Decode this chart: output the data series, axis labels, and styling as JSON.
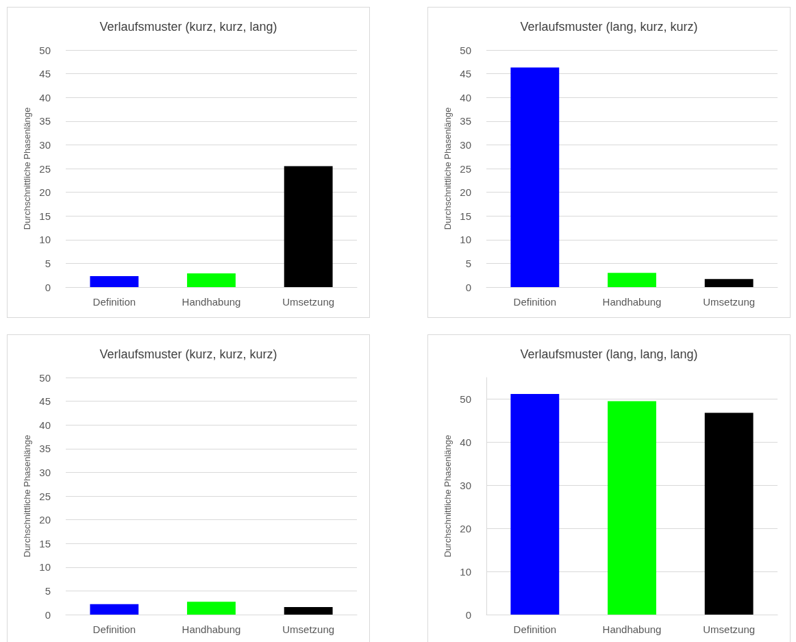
{
  "chart_data": [
    {
      "type": "bar",
      "title": "Verlaufsmuster (kurz, kurz, lang)",
      "ylabel": "Durchschnittliche Phasenlänge",
      "categories": [
        "Definition",
        "Handhabung",
        "Umsetzung"
      ],
      "values": [
        2.3,
        2.9,
        25.5
      ],
      "colors": [
        "#0000ff",
        "#00ff00",
        "#000000"
      ],
      "ylim": [
        0,
        50
      ],
      "yticks": [
        0,
        5,
        10,
        15,
        20,
        25,
        30,
        35,
        40,
        45,
        50
      ],
      "grid": "y"
    },
    {
      "type": "bar",
      "title": "Verlaufsmuster (lang, kurz, kurz)",
      "ylabel": "Durchschnittliche Phasenlänge",
      "categories": [
        "Definition",
        "Handhabung",
        "Umsetzung"
      ],
      "values": [
        46.3,
        3.0,
        1.7
      ],
      "colors": [
        "#0000ff",
        "#00ff00",
        "#000000"
      ],
      "ylim": [
        0,
        50
      ],
      "yticks": [
        0,
        5,
        10,
        15,
        20,
        25,
        30,
        35,
        40,
        45,
        50
      ],
      "grid": "y"
    },
    {
      "type": "bar",
      "title": "Verlaufsmuster (kurz, kurz, kurz)",
      "ylabel": "Durchschnittliche Phasenlänge",
      "categories": [
        "Definition",
        "Handhabung",
        "Umsetzung"
      ],
      "values": [
        2.2,
        2.7,
        1.6
      ],
      "colors": [
        "#0000ff",
        "#00ff00",
        "#000000"
      ],
      "ylim": [
        0,
        50
      ],
      "yticks": [
        0,
        5,
        10,
        15,
        20,
        25,
        30,
        35,
        40,
        45,
        50
      ],
      "grid": "y"
    },
    {
      "type": "bar",
      "title": "Verlaufsmuster (lang, lang, lang)",
      "ylabel": "Durchschnittliche Phasenlänge",
      "categories": [
        "Definition",
        "Handhabung",
        "Umsetzung"
      ],
      "values": [
        51.2,
        49.5,
        46.8
      ],
      "colors": [
        "#0000ff",
        "#00ff00",
        "#000000"
      ],
      "ylim": [
        0,
        55
      ],
      "yticks": [
        0,
        10,
        20,
        30,
        40,
        50
      ],
      "grid": "y"
    }
  ]
}
